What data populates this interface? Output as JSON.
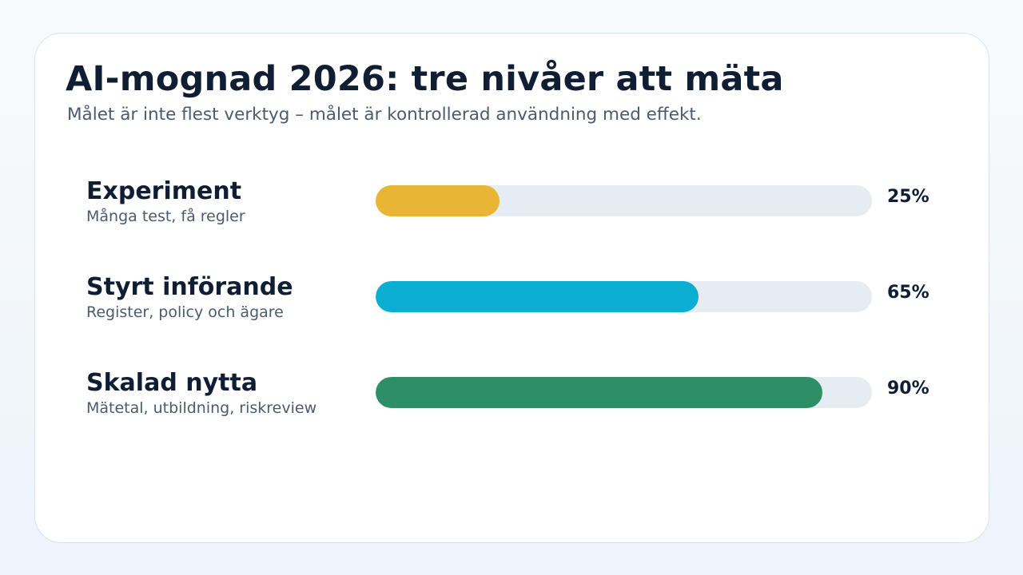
{
  "slide": {
    "title": "AI-mognad 2026: tre nivåer att mäta",
    "subtitle": "Målet är inte flest verktyg – målet är kontrollerad användning med effekt."
  },
  "chart_data": {
    "type": "bar",
    "orientation": "horizontal",
    "xlim": [
      0,
      100
    ],
    "unit": "%",
    "bars": [
      {
        "label": "Experiment",
        "description": "Många test, få regler",
        "value": 25,
        "value_label": "25%",
        "color": "#e9b535"
      },
      {
        "label": "Styrt införande",
        "description": "Register, policy och ägare",
        "value": 65,
        "value_label": "65%",
        "color": "#0aaed0"
      },
      {
        "label": "Skalad nytta",
        "description": "Mätetal, utbildning, riskreview",
        "value": 90,
        "value_label": "90%",
        "color": "#2e8f66"
      }
    ]
  }
}
